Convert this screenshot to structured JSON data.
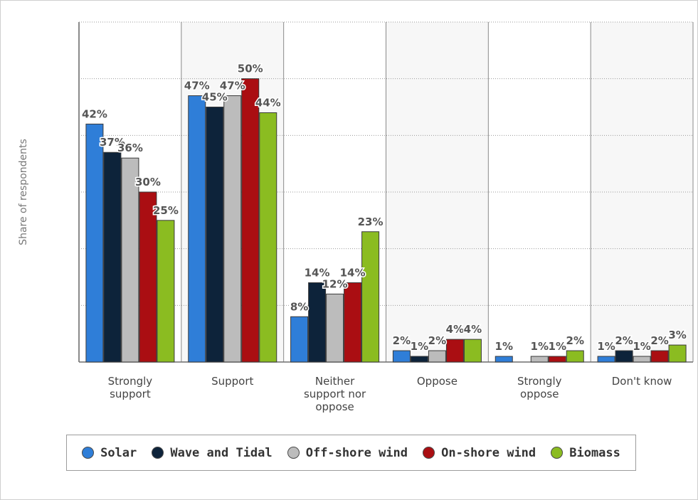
{
  "chart_data": {
    "type": "bar",
    "title": "",
    "xlabel": "",
    "ylabel": "Share of respondents",
    "ylim": [
      0,
      60
    ],
    "y_gridlines": [
      10,
      20,
      30,
      40,
      50,
      60
    ],
    "grid": true,
    "legend_position": "bottom",
    "categories": [
      [
        "Strongly",
        "support"
      ],
      [
        "Support"
      ],
      [
        "Neither",
        "support nor",
        "oppose"
      ],
      [
        "Oppose"
      ],
      [
        "Strongly",
        "oppose"
      ],
      [
        "Don't know"
      ]
    ],
    "series": [
      {
        "name": "Solar",
        "color": "#2f7ed8",
        "values": [
          42,
          47,
          8,
          2,
          1,
          1
        ]
      },
      {
        "name": "Wave and Tidal",
        "color": "#0d233a",
        "values": [
          37,
          45,
          14,
          1,
          null,
          2
        ]
      },
      {
        "name": "Off-shore wind",
        "color": "#bcbcbc",
        "values": [
          36,
          47,
          12,
          2,
          1,
          1
        ]
      },
      {
        "name": "On-shore wind",
        "color": "#aa0e12",
        "values": [
          30,
          50,
          14,
          4,
          1,
          2
        ]
      },
      {
        "name": "Biomass",
        "color": "#8bbc21",
        "values": [
          25,
          44,
          23,
          4,
          2,
          3
        ]
      }
    ],
    "value_suffix": "%",
    "band_colors": [
      "#ffffff",
      "#f7f7f7"
    ]
  }
}
